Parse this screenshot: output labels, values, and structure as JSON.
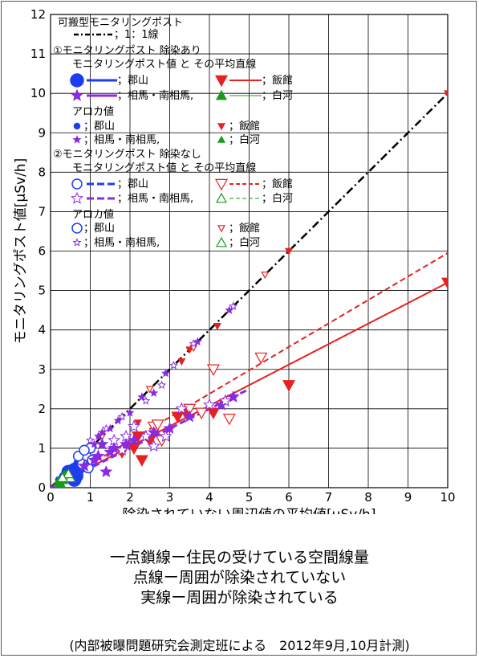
{
  "chart_data": {
    "type": "scatter",
    "xlabel": "除染されていない周辺値の平均値[μSv/h]",
    "ylabel": "モニタリングポスト値[μSv/h]",
    "xlim": [
      0,
      10
    ],
    "ylim": [
      0,
      12
    ],
    "x_ticks": [
      "0",
      "1",
      "2",
      "3",
      "4",
      "5",
      "6",
      "7",
      "8",
      "9",
      "10"
    ],
    "y_ticks": [
      "0",
      "1",
      "2",
      "3",
      "4",
      "5",
      "6",
      "7",
      "8",
      "9",
      "10",
      "11",
      "12"
    ],
    "grid": true,
    "legend": {
      "title": "可搬型モニタリングポスト",
      "ref_label": "；1：1線",
      "group1": "①モニタリングポスト 除染あり",
      "group2": "②モニタリングポスト 除染なし",
      "subhead": "モニタリングポスト値 と その平均直線",
      "aloka": "アロカ値",
      "koriyama": "；郡山",
      "iitate": "；飯館",
      "soma": "；相馬・南相馬,",
      "shirakawa": "；白河"
    },
    "colors": {
      "koriyama": "#1e3df0",
      "iitate": "#e82020",
      "soma": "#8a2be2",
      "shirakawa": "#1a9a1a",
      "ref": "#000000"
    },
    "reference_line": {
      "name": "1:1線",
      "x": [
        0,
        10
      ],
      "y": [
        0,
        10
      ]
    },
    "fit_lines": [
      {
        "name": "除染あり",
        "x": [
          0,
          10
        ],
        "y": [
          0,
          5.2
        ]
      },
      {
        "name": "除染なし",
        "x": [
          0,
          10
        ],
        "y": [
          0,
          5.95
        ]
      },
      {
        "name": "相馬・南相馬 除染なし",
        "x": [
          0,
          5
        ],
        "y": [
          0,
          2.5
        ]
      }
    ],
    "series": [
      {
        "key": "koriyama",
        "marker": "circle-filled",
        "points": [
          [
            0.5,
            0.35
          ],
          [
            0.6,
            0.45
          ],
          [
            0.55,
            0.25
          ],
          [
            0.7,
            0.5
          ],
          [
            0.45,
            0.4
          ],
          [
            0.65,
            0.3
          ],
          [
            0.75,
            0.6
          ],
          [
            0.6,
            0.2
          ]
        ]
      },
      {
        "key": "koriyama",
        "marker": "circle-open",
        "points": [
          [
            0.9,
            0.8
          ],
          [
            1.0,
            1.0
          ],
          [
            0.8,
            0.6
          ],
          [
            0.7,
            0.8
          ],
          [
            0.95,
            0.5
          ],
          [
            0.85,
            0.95
          ],
          [
            1.05,
            0.7
          ]
        ]
      },
      {
        "key": "iitate",
        "marker": "tri-down-filled",
        "points": [
          [
            1.8,
            0.9
          ],
          [
            2.1,
            1.0
          ],
          [
            2.3,
            0.7
          ],
          [
            2.5,
            1.2
          ],
          [
            3.2,
            1.8
          ],
          [
            3.4,
            1.9
          ],
          [
            4.1,
            1.9
          ],
          [
            6.0,
            2.6
          ],
          [
            10.0,
            5.2
          ],
          [
            2.2,
            1.3
          ]
        ]
      },
      {
        "key": "iitate",
        "marker": "tri-down-open",
        "points": [
          [
            2.6,
            1.55
          ],
          [
            2.7,
            1.6
          ],
          [
            3.8,
            1.9
          ],
          [
            4.1,
            3.0
          ],
          [
            4.5,
            1.75
          ],
          [
            5.3,
            3.3
          ],
          [
            3.5,
            2.0
          ],
          [
            2.8,
            1.2
          ]
        ]
      },
      {
        "key": "iitate",
        "marker": "tri-down-filled-small",
        "points": [
          [
            2.2,
            1.65
          ],
          [
            3.3,
            3.2
          ],
          [
            4.2,
            4.1
          ],
          [
            6.0,
            6.0
          ],
          [
            10.0,
            10.0
          ],
          [
            3.5,
            3.5
          ]
        ]
      },
      {
        "key": "iitate",
        "marker": "tri-down-open-small",
        "points": [
          [
            1.3,
            1.3
          ],
          [
            2.5,
            2.5
          ],
          [
            3.6,
            3.55
          ],
          [
            5.4,
            5.4
          ]
        ]
      },
      {
        "key": "soma",
        "marker": "star-filled",
        "points": [
          [
            0.85,
            0.55
          ],
          [
            1.1,
            0.7
          ],
          [
            1.2,
            0.8
          ],
          [
            1.4,
            0.4
          ],
          [
            1.6,
            1.0
          ],
          [
            1.9,
            1.1
          ],
          [
            2.1,
            1.2
          ],
          [
            2.6,
            1.4
          ],
          [
            3.0,
            1.5
          ],
          [
            3.5,
            1.8
          ],
          [
            4.3,
            2.1
          ],
          [
            4.6,
            2.3
          ],
          [
            1.3,
            1.1
          ],
          [
            1.5,
            0.9
          ]
        ]
      },
      {
        "key": "soma",
        "marker": "star-open",
        "points": [
          [
            1.6,
            1.2
          ],
          [
            1.9,
            1.3
          ],
          [
            2.1,
            1.55
          ],
          [
            2.4,
            1.3
          ],
          [
            2.9,
            1.3
          ],
          [
            3.3,
            2.0
          ],
          [
            4.0,
            2.1
          ],
          [
            4.4,
            2.2
          ],
          [
            1.8,
            0.95
          ],
          [
            2.6,
            1.05
          ]
        ]
      },
      {
        "key": "soma",
        "marker": "star-filled-small",
        "points": [
          [
            1.1,
            1.1
          ],
          [
            1.3,
            1.4
          ],
          [
            1.5,
            1.5
          ],
          [
            1.7,
            1.7
          ],
          [
            2.0,
            1.9
          ],
          [
            2.3,
            2.3
          ],
          [
            2.6,
            2.4
          ],
          [
            2.9,
            2.9
          ],
          [
            3.7,
            3.7
          ],
          [
            4.5,
            4.5
          ],
          [
            1.2,
            1.3
          ]
        ]
      },
      {
        "key": "soma",
        "marker": "star-open-small",
        "points": [
          [
            1.0,
            1.2
          ],
          [
            1.4,
            1.5
          ],
          [
            1.8,
            1.8
          ],
          [
            2.4,
            2.2
          ],
          [
            2.8,
            2.6
          ],
          [
            3.1,
            3.1
          ],
          [
            4.6,
            4.6
          ],
          [
            3.6,
            3.65
          ]
        ]
      },
      {
        "key": "koriyama",
        "marker": "circle-small",
        "points": [
          [
            0.3,
            0.3
          ],
          [
            0.4,
            0.4
          ],
          [
            0.6,
            0.55
          ],
          [
            0.2,
            0.2
          ],
          [
            0.5,
            0.5
          ]
        ]
      },
      {
        "key": "shirakawa",
        "marker": "tri-up-filled",
        "points": [
          [
            0.2,
            0.15
          ],
          [
            0.3,
            0.2
          ],
          [
            0.35,
            0.3
          ],
          [
            0.25,
            0.1
          ]
        ]
      },
      {
        "key": "shirakawa",
        "marker": "tri-up-open",
        "points": [
          [
            0.4,
            0.3
          ],
          [
            0.5,
            0.25
          ],
          [
            0.45,
            0.35
          ],
          [
            0.3,
            0.25
          ]
        ]
      }
    ]
  },
  "caption": {
    "line1": "一点鎖線ー住民の受けている空間線量",
    "line2": "点線ー周囲が除染されていない",
    "line3": "実線ー周囲が除染されている"
  },
  "source": "(内部被曝問題研究会測定班による　2012年9月,10月計測)"
}
